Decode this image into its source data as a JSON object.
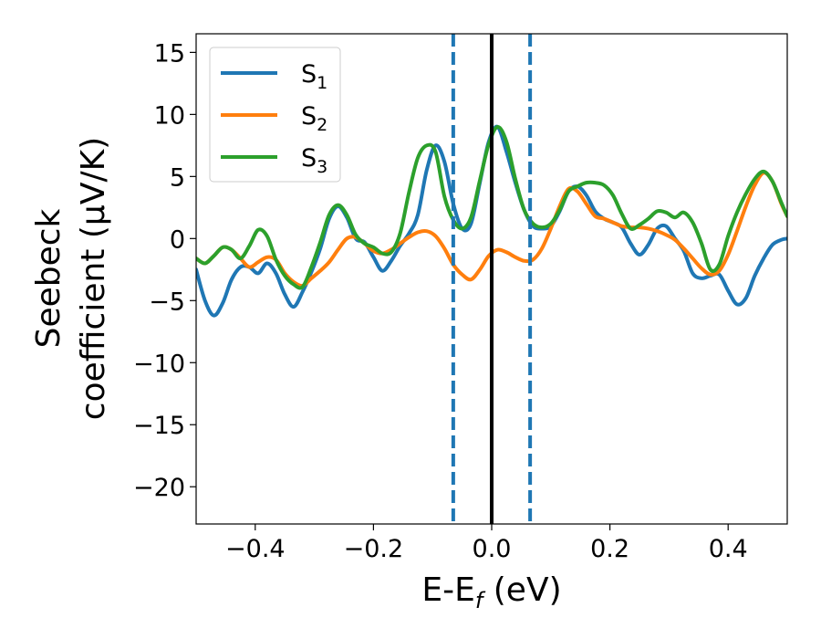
{
  "chart_data": {
    "type": "line",
    "xlabel": "E-E",
    "xlabel_sub": "f",
    "xlabel_unit": " (eV)",
    "ylabel_line1": "Seebeck",
    "ylabel_line2": "coefficient  (μV/K)",
    "xlim": [
      -0.5,
      0.5
    ],
    "ylim": [
      -23,
      16.5
    ],
    "xticks": [
      -0.4,
      -0.2,
      0.0,
      0.2,
      0.4
    ],
    "xtick_labels": [
      "−0.4",
      "−0.2",
      "0.0",
      "0.2",
      "0.4"
    ],
    "yticks": [
      -20,
      -15,
      -10,
      -5,
      0,
      5,
      10,
      15
    ],
    "ytick_labels": [
      "−20",
      "−15",
      "−10",
      "−5",
      "0",
      "5",
      "10",
      "15"
    ],
    "grid": false,
    "legend_placement": "top-left",
    "vlines": [
      {
        "x": -0.065,
        "style": "dashed",
        "color": "#1f77b4"
      },
      {
        "x": 0.0,
        "style": "solid",
        "color": "#000000"
      },
      {
        "x": 0.065,
        "style": "dashed",
        "color": "#1f77b4"
      }
    ],
    "series": [
      {
        "name": "S",
        "sub": "1",
        "color": "#1f77b4",
        "x": [
          -0.5,
          -0.485,
          -0.47,
          -0.455,
          -0.44,
          -0.425,
          -0.41,
          -0.395,
          -0.38,
          -0.365,
          -0.35,
          -0.335,
          -0.32,
          -0.305,
          -0.29,
          -0.275,
          -0.26,
          -0.245,
          -0.23,
          -0.215,
          -0.2,
          -0.185,
          -0.17,
          -0.155,
          -0.14,
          -0.125,
          -0.11,
          -0.095,
          -0.08,
          -0.065,
          -0.05,
          -0.035,
          -0.02,
          -0.005,
          0.01,
          0.025,
          0.04,
          0.055,
          0.07,
          0.085,
          0.1,
          0.115,
          0.13,
          0.145,
          0.16,
          0.175,
          0.19,
          0.205,
          0.22,
          0.235,
          0.25,
          0.265,
          0.28,
          0.295,
          0.31,
          0.325,
          0.34,
          0.355,
          0.37,
          0.385,
          0.4,
          0.415,
          0.43,
          0.445,
          0.46,
          0.475,
          0.49,
          0.5
        ],
        "y": [
          -2.5,
          -5.0,
          -6.2,
          -5.2,
          -3.3,
          -2.3,
          -2.3,
          -2.8,
          -2.0,
          -2.8,
          -4.5,
          -5.5,
          -4.3,
          -2.7,
          -0.8,
          1.6,
          2.6,
          1.7,
          0.0,
          -0.3,
          -1.5,
          -2.6,
          -1.8,
          -0.6,
          0.4,
          1.9,
          5.5,
          7.5,
          6.2,
          2.8,
          0.8,
          1.2,
          4.5,
          7.8,
          9.0,
          7.0,
          4.5,
          2.3,
          1.0,
          0.8,
          1.0,
          2.2,
          3.8,
          4.2,
          3.5,
          2.2,
          1.6,
          1.3,
          0.9,
          -0.4,
          -1.3,
          -0.5,
          0.8,
          1.0,
          0.0,
          -1.0,
          -2.8,
          -3.2,
          -3.0,
          -2.9,
          -4.2,
          -5.3,
          -4.8,
          -3.0,
          -1.6,
          -0.5,
          -0.1,
          0.0
        ]
      },
      {
        "name": "S",
        "sub": "2",
        "color": "#ff7f0e",
        "x": [
          -0.5,
          -0.485,
          -0.47,
          -0.455,
          -0.44,
          -0.425,
          -0.41,
          -0.395,
          -0.38,
          -0.365,
          -0.35,
          -0.335,
          -0.32,
          -0.305,
          -0.29,
          -0.275,
          -0.26,
          -0.245,
          -0.23,
          -0.215,
          -0.2,
          -0.185,
          -0.17,
          -0.155,
          -0.14,
          -0.125,
          -0.11,
          -0.095,
          -0.08,
          -0.065,
          -0.05,
          -0.035,
          -0.02,
          -0.005,
          0.01,
          0.025,
          0.04,
          0.055,
          0.07,
          0.085,
          0.1,
          0.115,
          0.13,
          0.145,
          0.16,
          0.175,
          0.19,
          0.205,
          0.22,
          0.235,
          0.25,
          0.265,
          0.28,
          0.295,
          0.31,
          0.325,
          0.34,
          0.355,
          0.37,
          0.385,
          0.4,
          0.415,
          0.43,
          0.445,
          0.46,
          0.475,
          0.49,
          0.5
        ],
        "y": [
          -1.6,
          -2.0,
          -1.4,
          -0.7,
          -0.9,
          -1.6,
          -2.3,
          -1.9,
          -1.5,
          -1.7,
          -2.8,
          -3.5,
          -3.8,
          -3.2,
          -2.6,
          -1.9,
          -0.9,
          0.0,
          0.1,
          -0.4,
          -1.0,
          -1.2,
          -0.9,
          -0.4,
          0.1,
          0.5,
          0.6,
          0.2,
          -0.8,
          -2.1,
          -2.9,
          -3.3,
          -2.5,
          -1.4,
          -0.9,
          -1.1,
          -1.5,
          -1.8,
          -1.7,
          -0.8,
          0.8,
          2.6,
          4.0,
          3.8,
          2.8,
          1.8,
          1.6,
          1.3,
          1.0,
          0.9,
          0.9,
          0.8,
          0.6,
          0.3,
          -0.1,
          -0.8,
          -1.6,
          -2.4,
          -2.9,
          -2.6,
          -1.3,
          0.6,
          2.6,
          4.3,
          5.3,
          4.6,
          2.8,
          1.8
        ]
      },
      {
        "name": "S",
        "sub": "3",
        "color": "#2ca02c",
        "x": [
          -0.5,
          -0.485,
          -0.47,
          -0.455,
          -0.44,
          -0.425,
          -0.41,
          -0.395,
          -0.38,
          -0.365,
          -0.35,
          -0.335,
          -0.32,
          -0.305,
          -0.29,
          -0.275,
          -0.26,
          -0.245,
          -0.23,
          -0.215,
          -0.2,
          -0.185,
          -0.17,
          -0.155,
          -0.14,
          -0.125,
          -0.11,
          -0.095,
          -0.08,
          -0.065,
          -0.05,
          -0.035,
          -0.02,
          -0.005,
          0.01,
          0.025,
          0.04,
          0.055,
          0.07,
          0.085,
          0.1,
          0.115,
          0.13,
          0.145,
          0.16,
          0.175,
          0.19,
          0.205,
          0.22,
          0.235,
          0.25,
          0.265,
          0.28,
          0.295,
          0.31,
          0.325,
          0.34,
          0.355,
          0.37,
          0.385,
          0.4,
          0.415,
          0.43,
          0.445,
          0.46,
          0.475,
          0.49,
          0.5
        ],
        "y": [
          -1.6,
          -2.0,
          -1.4,
          -0.7,
          -0.9,
          -1.6,
          -0.6,
          0.7,
          0.2,
          -1.7,
          -3.0,
          -3.7,
          -3.9,
          -2.3,
          -0.3,
          1.9,
          2.7,
          1.9,
          0.3,
          -0.4,
          -0.7,
          -1.2,
          -1.1,
          0.4,
          3.7,
          6.5,
          7.5,
          7.0,
          3.4,
          1.5,
          0.8,
          1.7,
          4.7,
          7.6,
          9.0,
          7.8,
          4.8,
          2.3,
          1.2,
          0.9,
          1.2,
          2.3,
          3.8,
          4.2,
          4.5,
          4.5,
          4.3,
          3.5,
          2.0,
          0.8,
          1.1,
          1.6,
          2.2,
          2.1,
          1.7,
          2.1,
          1.3,
          -0.4,
          -2.5,
          -2.1,
          0.2,
          2.1,
          3.6,
          4.8,
          5.4,
          4.6,
          2.9,
          1.8
        ]
      }
    ]
  }
}
